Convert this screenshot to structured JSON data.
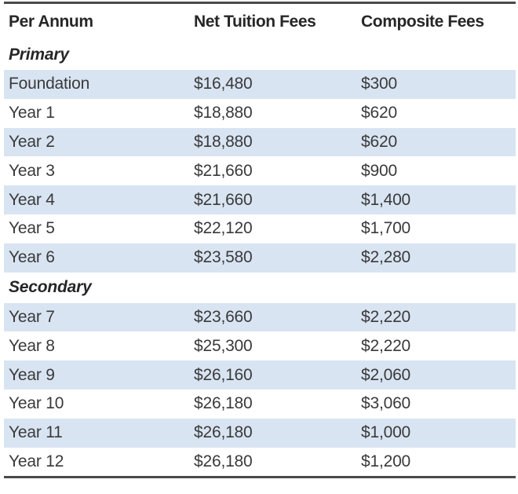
{
  "header": {
    "per_annum": "Per Annum",
    "net_tuition": "Net Tuition Fees",
    "composite": "Composite Fees"
  },
  "sections": [
    {
      "title": "Primary",
      "rows": [
        {
          "level": "Foundation",
          "net": "$16,480",
          "composite": "$300"
        },
        {
          "level": "Year 1",
          "net": "$18,880",
          "composite": "$620"
        },
        {
          "level": "Year 2",
          "net": "$18,880",
          "composite": "$620"
        },
        {
          "level": "Year 3",
          "net": "$21,660",
          "composite": "$900"
        },
        {
          "level": "Year 4",
          "net": "$21,660",
          "composite": "$1,400"
        },
        {
          "level": "Year 5",
          "net": "$22,120",
          "composite": "$1,700"
        },
        {
          "level": "Year 6",
          "net": "$23,580",
          "composite": "$2,280"
        }
      ]
    },
    {
      "title": "Secondary",
      "rows": [
        {
          "level": "Year 7",
          "net": "$23,660",
          "composite": "$2,220"
        },
        {
          "level": "Year 8",
          "net": "$25,300",
          "composite": "$2,220"
        },
        {
          "level": "Year 9",
          "net": "$26,160",
          "composite": "$2,060"
        },
        {
          "level": "Year 10",
          "net": "$26,180",
          "composite": "$3,060"
        },
        {
          "level": "Year 11",
          "net": "$26,180",
          "composite": "$1,000"
        },
        {
          "level": "Year 12",
          "net": "$26,180",
          "composite": "$1,200"
        }
      ]
    }
  ]
}
